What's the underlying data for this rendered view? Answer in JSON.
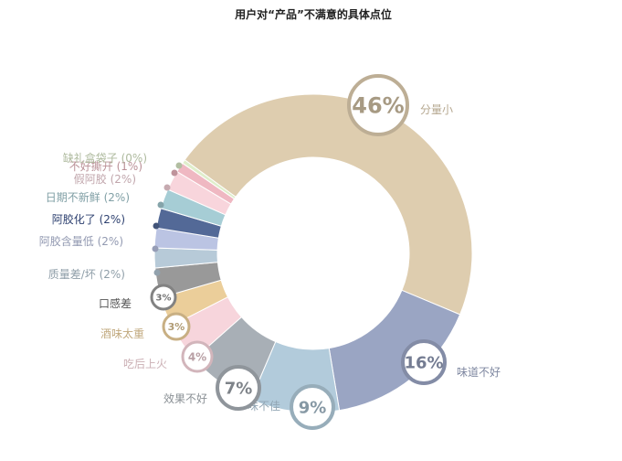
{
  "chart_data": {
    "type": "pie",
    "title": "用户对“产品”不满意的具体点位",
    "items": [
      {
        "name": "分量小",
        "value": 46,
        "color": "#decdaf",
        "label": "分量小",
        "badge": "46%"
      },
      {
        "name": "味道不好",
        "value": 16,
        "color": "#9aa5c3",
        "label": "味道不好",
        "badge": "16%"
      },
      {
        "name": "口味不佳",
        "value": 9,
        "color": "#b2cbdb",
        "label": "味不佳",
        "badge": "9%"
      },
      {
        "name": "效果不好",
        "value": 7,
        "color": "#a8afb6",
        "label": "效果不好",
        "badge": "7%"
      },
      {
        "name": "吃后上火",
        "value": 4,
        "color": "#f7d5dc",
        "label": "吃后上火",
        "badge": "4%"
      },
      {
        "name": "酒味太重",
        "value": 3,
        "color": "#ebce9a",
        "label": "酒味太重",
        "badge": "3%"
      },
      {
        "name": "口感差",
        "value": 3,
        "color": "#999999",
        "label": "口感差",
        "badge": "3%"
      },
      {
        "name": "质量差/坏",
        "value": 2,
        "color": "#b7cad8",
        "label": "质量差/坏 (2%)"
      },
      {
        "name": "阿胶含量低",
        "value": 2,
        "color": "#bbc4e3",
        "label": "阿胶含量低 (2%)"
      },
      {
        "name": "阿胶化了",
        "value": 2,
        "color": "#536997",
        "label": "阿胶化了 (2%)"
      },
      {
        "name": "日期不新鲜",
        "value": 2,
        "color": "#a6cdd5",
        "label": "日期不新鲜 (2%)"
      },
      {
        "name": "假阿胶",
        "value": 2,
        "color": "#f8d5dc",
        "label": "假阿胶 (2%)"
      },
      {
        "name": "不好撕开",
        "value": 1,
        "color": "#efb8c2",
        "label": "不好撕开 (1%)"
      },
      {
        "name": "缺礼盒袋子",
        "value": 0.4,
        "color": "#dfeecb",
        "label": "缺礼盒袋子 (0%)"
      }
    ]
  }
}
